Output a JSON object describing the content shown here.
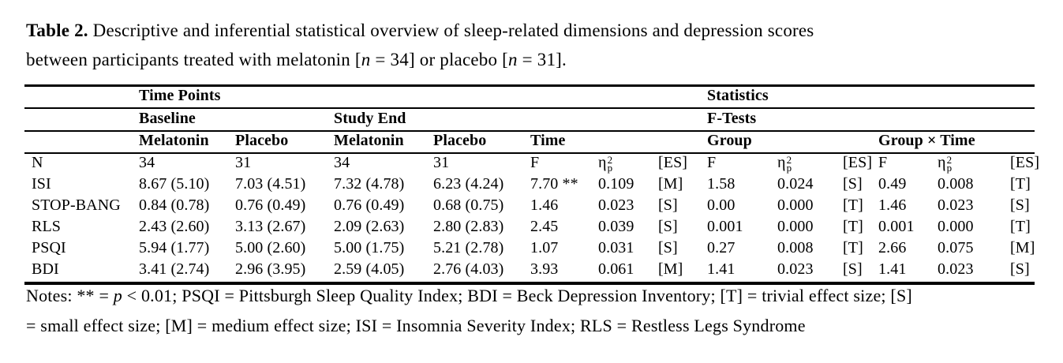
{
  "title": {
    "label": "Table 2.",
    "rest_segments": [
      {
        "text": " Descriptive and inferential statistical overview of sleep-related dimensions and depression scores"
      },
      {
        "break": true
      },
      {
        "text": "between participants treated with melatonin ["
      },
      {
        "text": "n",
        "italic": true
      },
      {
        "text": " = 34] or placebo ["
      },
      {
        "text": "n",
        "italic": true
      },
      {
        "text": " = 31]."
      }
    ]
  },
  "table": {
    "spanners": {
      "time_points": "Time Points",
      "statistics": "Statistics",
      "baseline": "Baseline",
      "study_end": "Study End",
      "f_tests": "F-Tests",
      "melatonin": "Melatonin",
      "placebo": "Placebo",
      "time": "Time",
      "group": "Group",
      "group_time": "Group × Time"
    },
    "stat_header": {
      "f": "F",
      "eta_symbol": "η",
      "eta_sup": "2",
      "eta_sub": "p",
      "es": "[ES]"
    },
    "n_row": {
      "label": "N",
      "values": [
        "34",
        "31",
        "34",
        "31"
      ]
    },
    "body_rows": [
      {
        "label": "ISI",
        "descriptives": [
          "8.67 (5.10)",
          "7.03 (4.51)",
          "7.32 (4.78)",
          "6.23 (4.24)"
        ],
        "stats": [
          "7.70 **",
          "0.109",
          "[M]",
          "1.58",
          "0.024",
          "[S]",
          "0.49",
          "0.008",
          "[T]"
        ]
      },
      {
        "label": "STOP-BANG",
        "descriptives": [
          "0.84 (0.78)",
          "0.76 (0.49)",
          "0.76 (0.49)",
          "0.68 (0.75)"
        ],
        "stats": [
          "1.46",
          "0.023",
          "[S]",
          "0.00",
          "0.000",
          "[T]",
          "1.46",
          "0.023",
          "[S]"
        ]
      },
      {
        "label": "RLS",
        "descriptives": [
          "2.43 (2.60)",
          "3.13 (2.67)",
          "2.09 (2.63)",
          "2.80 (2.83)"
        ],
        "stats": [
          "2.45",
          "0.039",
          "[S]",
          "0.001",
          "0.000",
          "[T]",
          "0.001",
          "0.000",
          "[T]"
        ]
      },
      {
        "label": "PSQI",
        "descriptives": [
          "5.94 (1.77)",
          "5.00 (2.60)",
          "5.00 (1.75)",
          "5.21 (2.78)"
        ],
        "stats": [
          "1.07",
          "0.031",
          "[S]",
          "0.27",
          "0.008",
          "[T]",
          "2.66",
          "0.075",
          "[M]"
        ]
      },
      {
        "label": "BDI",
        "descriptives": [
          "3.41 (2.74)",
          "2.96 (3.95)",
          "2.59 (4.05)",
          "2.76 (4.03)"
        ],
        "stats": [
          "3.93",
          "0.061",
          "[M]",
          "1.41",
          "0.023",
          "[S]",
          "1.41",
          "0.023",
          "[S]"
        ]
      }
    ]
  },
  "notes": {
    "segments": [
      {
        "text": "Notes: ** = "
      },
      {
        "text": "p",
        "italic": true
      },
      {
        "text": " < 0.01; PSQI = Pittsburgh Sleep Quality Index; BDI = Beck Depression Inventory; [T] = trivial effect size; [S]"
      },
      {
        "break": true
      },
      {
        "text": "= small effect size; [M] = medium effect size; ISI = Insomnia Severity Index; RLS = Restless Legs Syndrome"
      }
    ]
  }
}
